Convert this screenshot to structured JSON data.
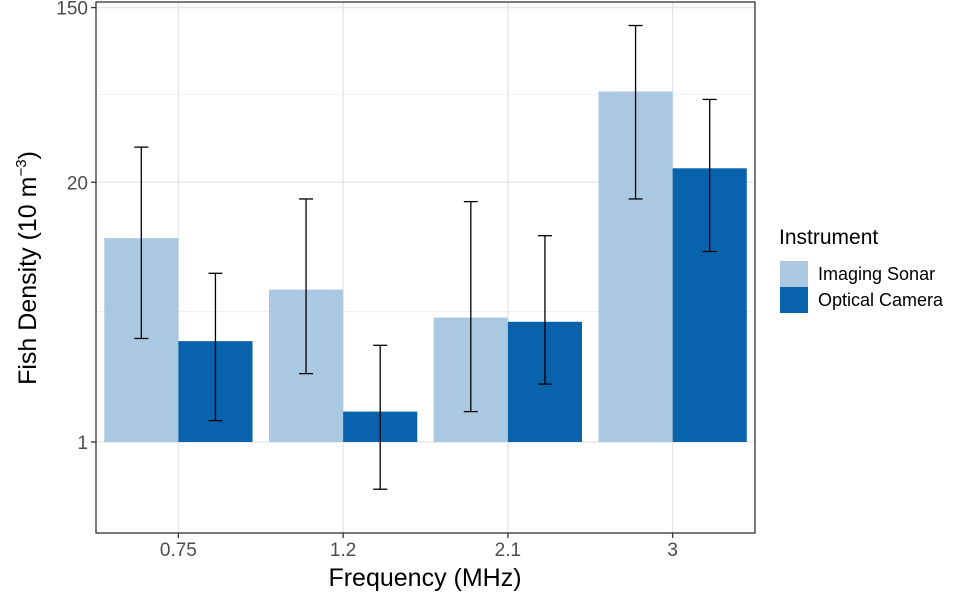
{
  "chart_data": {
    "type": "bar",
    "xlabel": "Frequency (MHz)",
    "ylabel": {
      "base": "Fish Density (10 m",
      "exponent": "−3",
      "close": ")"
    },
    "y_scale": "log",
    "ylim": [
      0.35,
      160
    ],
    "y_baseline": 1,
    "y_ticks": [
      1,
      20,
      150
    ],
    "y_tick_labels": [
      "1",
      "20",
      "150"
    ],
    "y_minor_gridlines": [
      4.5,
      55
    ],
    "categories": [
      "0.75",
      "1.2",
      "2.1",
      "3"
    ],
    "legend": {
      "title": "Instrument",
      "position": "right"
    },
    "series": [
      {
        "name": "Imaging Sonar",
        "color": "#abc8e2",
        "values": [
          10.5,
          5.8,
          4.2,
          57
        ],
        "error_low": [
          3.3,
          2.2,
          1.42,
          16.5
        ],
        "error_high": [
          30,
          16.5,
          16,
          122
        ]
      },
      {
        "name": "Optical Camera",
        "color": "#0862ac",
        "values": [
          3.2,
          1.42,
          4.0,
          23.5
        ],
        "error_low": [
          1.28,
          0.58,
          1.95,
          9
        ],
        "error_high": [
          7,
          3.05,
          10.8,
          52
        ]
      }
    ],
    "errorbar_color": "#000000",
    "grid": true
  }
}
